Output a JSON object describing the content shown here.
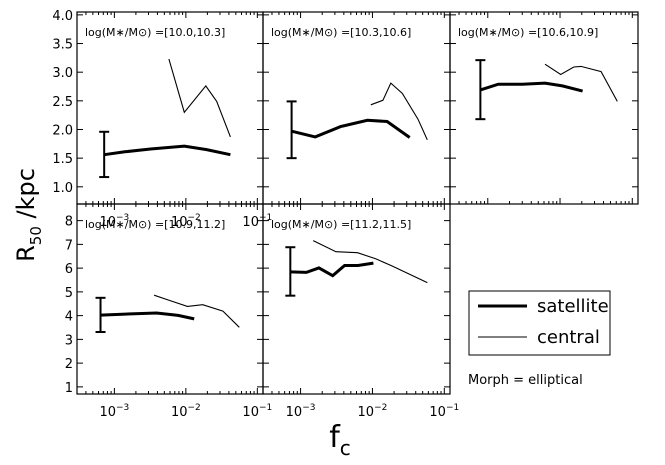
{
  "figure": {
    "ylabel_main": "R",
    "ylabel_sub": "50",
    "ylabel_rest": " /kpc",
    "xlabel_main": "f",
    "xlabel_sub": "c"
  },
  "legend": {
    "items": [
      {
        "label": "satellite",
        "line": "thick"
      },
      {
        "label": "central",
        "line": "thin"
      }
    ]
  },
  "annotation": {
    "morph": "Morph = elliptical"
  },
  "colors": {
    "line": "#000000",
    "background": "#ffffff"
  },
  "chart_data": [
    {
      "type": "line",
      "title": "log(M∗/M⊙) =[10.0,10.3]",
      "xscale": "log",
      "xlim": [
        0.0003,
        0.12
      ],
      "ylim": [
        0.7,
        4.05
      ],
      "yticks": [
        "1.0",
        "1.5",
        "2.0",
        "2.5",
        "3.0",
        "3.5",
        "4.0"
      ],
      "xticks": [
        "10^-3",
        "10^-2",
        "10^-1"
      ],
      "series": [
        {
          "name": "satellite",
          "x": [
            0.00072,
            0.0014,
            0.0032,
            0.0095,
            0.0195,
            0.042
          ],
          "y": [
            1.56,
            1.61,
            1.66,
            1.71,
            1.65,
            1.56
          ]
        },
        {
          "name": "central",
          "x": [
            0.0058,
            0.0095,
            0.019,
            0.027,
            0.042
          ],
          "y": [
            3.23,
            2.3,
            2.76,
            2.49,
            1.87
          ]
        }
      ],
      "errorbar": {
        "x": 0.00072,
        "low": 1.17,
        "high": 1.96
      }
    },
    {
      "type": "line",
      "title": "log(M∗/M⊙) =[10.3,10.6]",
      "xscale": "log",
      "xlim": [
        0.0003,
        0.12
      ],
      "ylim": [
        0.7,
        4.05
      ],
      "yticks": [],
      "xticks": [],
      "series": [
        {
          "name": "satellite",
          "x": [
            0.00075,
            0.0016,
            0.0036,
            0.0085,
            0.016,
            0.033
          ],
          "y": [
            1.97,
            1.87,
            2.05,
            2.16,
            2.14,
            1.86
          ]
        },
        {
          "name": "central",
          "x": [
            0.0095,
            0.014,
            0.018,
            0.026,
            0.043,
            0.058
          ],
          "y": [
            2.43,
            2.51,
            2.81,
            2.63,
            2.18,
            1.82
          ]
        }
      ],
      "errorbar": {
        "x": 0.00075,
        "low": 1.5,
        "high": 2.49
      }
    },
    {
      "type": "line",
      "title": "log(M∗/M⊙) =[10.6,10.9]",
      "xscale": "log",
      "xlim": [
        0.0003,
        0.12
      ],
      "ylim": [
        0.7,
        4.05
      ],
      "yticks": [],
      "xticks": [],
      "series": [
        {
          "name": "satellite",
          "x": [
            0.00079,
            0.0014,
            0.003,
            0.0062,
            0.0108,
            0.0205
          ],
          "y": [
            2.69,
            2.79,
            2.79,
            2.81,
            2.76,
            2.67
          ]
        },
        {
          "name": "central",
          "x": [
            0.0062,
            0.0102,
            0.0155,
            0.0195,
            0.037,
            0.062
          ],
          "y": [
            3.14,
            2.96,
            3.09,
            3.1,
            3.01,
            2.49
          ]
        }
      ],
      "errorbar": {
        "x": 0.00079,
        "low": 2.18,
        "high": 3.21
      }
    },
    {
      "type": "line",
      "title": "log(M∗/M⊙) =[10.9,11.2]",
      "xscale": "log",
      "xlim": [
        0.0003,
        0.12
      ],
      "ylim": [
        0.7,
        8.7
      ],
      "yticks": [
        "1",
        "2",
        "3",
        "4",
        "5",
        "6",
        "7",
        "8"
      ],
      "xticks": [
        "10^-3",
        "10^-2",
        "10^-1"
      ],
      "series": [
        {
          "name": "satellite",
          "x": [
            0.00064,
            0.0013,
            0.0039,
            0.0078,
            0.0131
          ],
          "y": [
            4.02,
            4.06,
            4.11,
            4.01,
            3.86
          ]
        },
        {
          "name": "central",
          "x": [
            0.0036,
            0.0056,
            0.0105,
            0.0172,
            0.033,
            0.056
          ],
          "y": [
            4.86,
            4.66,
            4.39,
            4.46,
            4.19,
            3.51
          ]
        }
      ],
      "errorbar": {
        "x": 0.00064,
        "low": 3.31,
        "high": 4.75
      }
    },
    {
      "type": "line",
      "title": "log(M∗/M⊙) =[11.2,11.5]",
      "xscale": "log",
      "xlim": [
        0.0003,
        0.12
      ],
      "ylim": [
        0.7,
        8.7
      ],
      "yticks": [],
      "xticks": [
        "10^-3",
        "10^-2",
        "10^-1"
      ],
      "series": [
        {
          "name": "satellite",
          "x": [
            0.00072,
            0.0012,
            0.0018,
            0.0028,
            0.0041,
            0.0063,
            0.0103
          ],
          "y": [
            5.84,
            5.82,
            6.01,
            5.68,
            6.11,
            6.11,
            6.21
          ]
        },
        {
          "name": "central",
          "x": [
            0.0015,
            0.0031,
            0.0062,
            0.0112,
            0.0185,
            0.058
          ],
          "y": [
            7.16,
            6.69,
            6.65,
            6.39,
            6.1,
            5.39
          ]
        }
      ],
      "errorbar": {
        "x": 0.00072,
        "low": 4.84,
        "high": 6.88
      }
    }
  ]
}
